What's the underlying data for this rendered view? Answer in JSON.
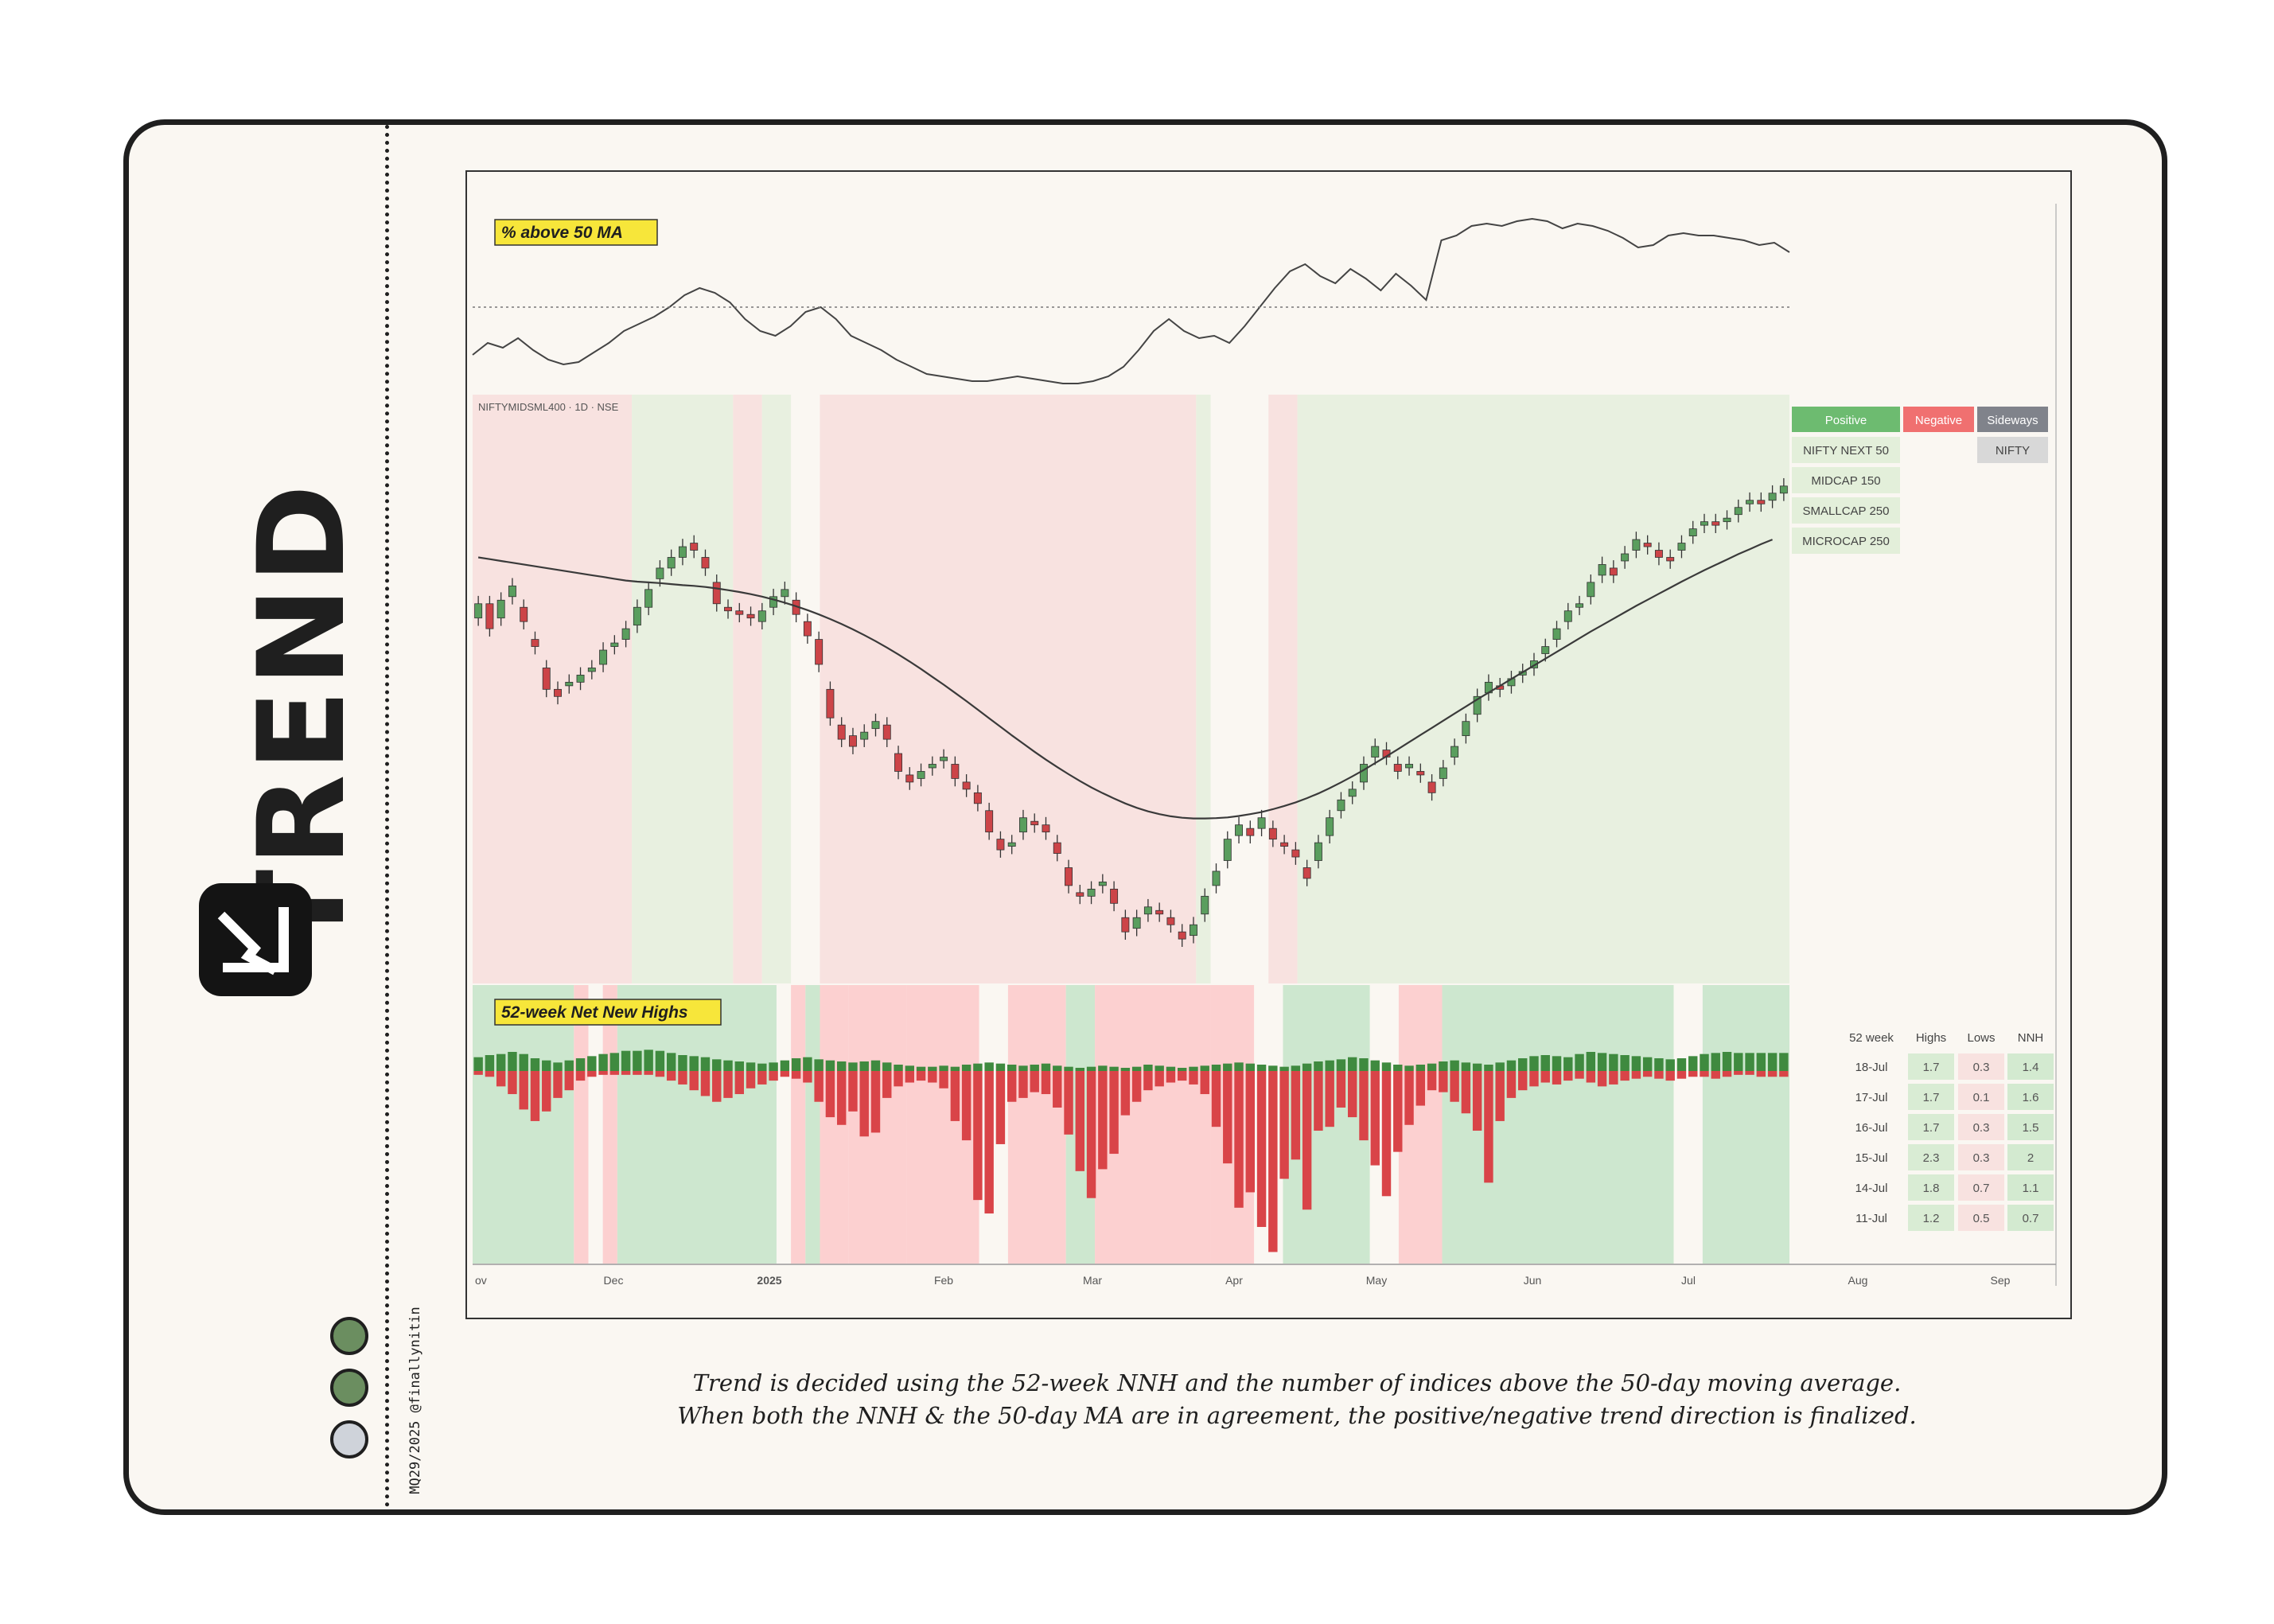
{
  "side": {
    "title": "TREND",
    "credit": "MQ29/2025 @finallynitin",
    "dot_colors": [
      "#6b8e60",
      "#6b8e60",
      "#cfd3da"
    ]
  },
  "caption": {
    "line1": "Trend is decided using the 52-week NNH and the number of indices above the 50-day moving average.",
    "line2": "When both the NNH & the 50-day MA are in agreement, the positive/negative trend direction is finalized."
  },
  "colors": {
    "bull": "#5a9e5e",
    "bear": "#cc4448",
    "bg_positive": "#e8f0e0",
    "bg_negative": "#f8e2e0",
    "nnh_positive": "#cde7cf",
    "nnh_negative": "#fcd0d0",
    "label_yellow": "#f7e63a"
  },
  "chart_data": [
    {
      "name": "pct-above-50ma",
      "type": "line",
      "title": "% above 50 MA",
      "reference_line": "dotted",
      "values": [
        40,
        45,
        43,
        47,
        42,
        38,
        36,
        37,
        41,
        45,
        50,
        53,
        56,
        60,
        65,
        68,
        66,
        62,
        55,
        50,
        48,
        52,
        58,
        60,
        55,
        48,
        45,
        42,
        38,
        35,
        32,
        31,
        30,
        29,
        29,
        30,
        31,
        30,
        29,
        28,
        28,
        29,
        31,
        35,
        42,
        50,
        55,
        50,
        47,
        48,
        45,
        52,
        60,
        68,
        75,
        78,
        73,
        70,
        76,
        72,
        67,
        74,
        69,
        63,
        88,
        90,
        94,
        95,
        94,
        96,
        97,
        96,
        93,
        95,
        94,
        92,
        89,
        85,
        86,
        90,
        91,
        90,
        90,
        89,
        88,
        86,
        87,
        83
      ],
      "ylim": [
        20,
        110
      ]
    },
    {
      "name": "price",
      "type": "candlestick",
      "symbol_label": "NIFTYMIDSML400 · 1D · NSE",
      "closes": [
        62,
        55,
        63,
        67,
        57,
        50,
        38,
        36,
        40,
        42,
        44,
        49,
        51,
        55,
        61,
        66,
        72,
        75,
        78,
        77,
        72,
        62,
        60,
        59,
        58,
        60,
        64,
        66,
        59,
        53,
        45,
        30,
        24,
        22,
        26,
        29,
        24,
        15,
        12,
        15,
        17,
        19,
        13,
        10,
        6,
        -2,
        -7,
        -5,
        2,
        0,
        -2,
        -8,
        -17,
        -20,
        -18,
        -16,
        -22,
        -30,
        -26,
        -23,
        -25,
        -28,
        -32,
        -28,
        -20,
        -13,
        -4,
        0,
        -3,
        2,
        -4,
        -6,
        -9,
        -15,
        -5,
        2,
        7,
        10,
        17,
        22,
        19,
        15,
        17,
        14,
        9,
        16,
        22,
        29,
        36,
        40,
        38,
        41,
        43,
        46,
        50,
        55,
        60,
        62,
        68,
        73,
        70,
        76,
        80,
        78,
        75,
        74,
        79,
        83,
        85,
        84,
        86,
        89,
        91,
        90,
        93,
        95
      ],
      "opens": [
        58,
        62,
        58,
        64,
        61,
        52,
        44,
        38,
        39,
        40,
        43,
        45,
        50,
        52,
        56,
        61,
        69,
        72,
        75,
        79,
        75,
        68,
        61,
        60,
        59,
        57,
        61,
        64,
        63,
        57,
        52,
        38,
        28,
        25,
        24,
        27,
        28,
        20,
        14,
        13,
        16,
        18,
        17,
        12,
        9,
        4,
        -4,
        -6,
        -2,
        1,
        0,
        -5,
        -12,
        -19,
        -20,
        -17,
        -18,
        -26,
        -29,
        -25,
        -24,
        -26,
        -30,
        -31,
        -25,
        -17,
        -10,
        -3,
        -1,
        -1,
        -1,
        -5,
        -7,
        -12,
        -10,
        -3,
        4,
        8,
        12,
        19,
        21,
        17,
        16,
        15,
        12,
        13,
        19,
        25,
        31,
        37,
        39,
        39,
        42,
        44,
        48,
        52,
        57,
        61,
        64,
        70,
        72,
        74,
        77,
        79,
        77,
        75,
        77,
        81,
        84,
        85,
        85,
        87,
        90,
        91,
        91,
        93
      ],
      "ma50": [
        75,
        74.5,
        74,
        73.5,
        73,
        72.5,
        72,
        71.5,
        71,
        70.5,
        70,
        69.5,
        69,
        68.5,
        68.2,
        68,
        67.8,
        67.5,
        67.2,
        67,
        66.7,
        66.3,
        65.8,
        65.3,
        64.7,
        64,
        63.2,
        62.3,
        61.3,
        60.2,
        59,
        57.7,
        56.3,
        54.8,
        53.2,
        51.5,
        49.7,
        47.8,
        45.8,
        43.7,
        41.5,
        39.3,
        37,
        34.7,
        32.3,
        29.9,
        27.5,
        25.1,
        22.8,
        20.5,
        18.3,
        16.2,
        14.2,
        12.3,
        10.5,
        8.9,
        7.4,
        6,
        4.8,
        3.8,
        3,
        2.4,
        2,
        1.8,
        1.8,
        1.9,
        2.1,
        2.5,
        3,
        3.6,
        4.4,
        5.3,
        6.3,
        7.5,
        8.8,
        10.3,
        11.9,
        13.6,
        15.4,
        17.3,
        19.2,
        21.2,
        23.2,
        25.2,
        27.2,
        29.2,
        31.2,
        33.2,
        35.2,
        37.1,
        39,
        40.9,
        42.8,
        44.7,
        46.6,
        48.5,
        50.4,
        52.3,
        54.2,
        56,
        57.8,
        59.6,
        61.4,
        63.1,
        64.8,
        66.5,
        68.2,
        69.8,
        71.4,
        72.9,
        74.4,
        75.9,
        77.3,
        78.7,
        80
      ],
      "ylim": [
        -40,
        105
      ],
      "regions": [
        {
          "start": 0,
          "end": 10,
          "state": "negative"
        },
        {
          "start": 11,
          "end": 17,
          "state": "positive"
        },
        {
          "start": 18,
          "end": 19,
          "state": "negative"
        },
        {
          "start": 20,
          "end": 21,
          "state": "positive"
        },
        {
          "start": 22,
          "end": 23,
          "state": "neutral"
        },
        {
          "start": 24,
          "end": 49,
          "state": "negative"
        },
        {
          "start": 50,
          "end": 50,
          "state": "positive"
        },
        {
          "start": 52,
          "end": 54,
          "state": "neutral"
        },
        {
          "start": 55,
          "end": 56,
          "state": "negative"
        },
        {
          "start": 57,
          "end": 90,
          "state": "positive"
        }
      ]
    },
    {
      "name": "nnh",
      "type": "bar",
      "title": "52-week Net New Highs",
      "highs": [
        1.3,
        1.5,
        1.6,
        1.8,
        1.6,
        1.2,
        1.0,
        0.8,
        1.0,
        1.2,
        1.4,
        1.6,
        1.7,
        1.9,
        1.9,
        2.0,
        1.9,
        1.7,
        1.5,
        1.4,
        1.3,
        1.1,
        1.0,
        0.9,
        0.8,
        0.7,
        0.8,
        1.0,
        1.2,
        1.3,
        1.1,
        1.0,
        0.9,
        0.8,
        0.9,
        1.0,
        0.8,
        0.6,
        0.5,
        0.4,
        0.4,
        0.5,
        0.4,
        0.6,
        0.7,
        0.8,
        0.7,
        0.6,
        0.5,
        0.6,
        0.7,
        0.5,
        0.4,
        0.3,
        0.4,
        0.5,
        0.4,
        0.3,
        0.4,
        0.6,
        0.5,
        0.4,
        0.3,
        0.4,
        0.5,
        0.6,
        0.7,
        0.8,
        0.7,
        0.6,
        0.5,
        0.4,
        0.5,
        0.7,
        0.9,
        1.0,
        1.1,
        1.3,
        1.2,
        1.0,
        0.8,
        0.6,
        0.5,
        0.6,
        0.7,
        0.9,
        1.0,
        0.8,
        0.7,
        0.6,
        0.8,
        1.0,
        1.2,
        1.4,
        1.5,
        1.4,
        1.3,
        1.6,
        1.8,
        1.7,
        1.6,
        1.5,
        1.4,
        1.3,
        1.2,
        1.1,
        1.2,
        1.4,
        1.6,
        1.7,
        1.8,
        1.7,
        1.7,
        1.7,
        1.7,
        1.7
      ],
      "lows": [
        0.2,
        0.3,
        0.8,
        1.2,
        2.0,
        2.6,
        2.1,
        1.4,
        1.0,
        0.5,
        0.3,
        0.2,
        0.2,
        0.2,
        0.2,
        0.2,
        0.3,
        0.5,
        0.7,
        1.0,
        1.3,
        1.6,
        1.4,
        1.2,
        0.9,
        0.7,
        0.5,
        0.3,
        0.4,
        0.6,
        1.6,
        2.4,
        2.8,
        2.1,
        3.4,
        3.2,
        1.4,
        0.8,
        0.6,
        0.5,
        0.6,
        0.9,
        2.6,
        3.6,
        6.7,
        7.4,
        3.8,
        1.6,
        1.4,
        1.1,
        1.2,
        1.9,
        3.3,
        5.2,
        6.6,
        5.1,
        4.3,
        2.3,
        1.6,
        1.0,
        0.8,
        0.6,
        0.5,
        0.7,
        1.2,
        2.9,
        4.8,
        7.1,
        6.3,
        8.1,
        9.4,
        5.6,
        4.6,
        7.2,
        3.1,
        2.9,
        1.9,
        2.4,
        3.6,
        4.9,
        6.5,
        4.2,
        2.8,
        1.8,
        1.0,
        1.1,
        1.6,
        2.2,
        3.1,
        5.8,
        2.6,
        1.4,
        1.0,
        0.8,
        0.6,
        0.7,
        0.5,
        0.4,
        0.6,
        0.8,
        0.7,
        0.5,
        0.4,
        0.3,
        0.4,
        0.5,
        0.4,
        0.3,
        0.3,
        0.4,
        0.3,
        0.2,
        0.2,
        0.3,
        0.3,
        0.3
      ],
      "ylim_low": -10,
      "ylim_high": 3,
      "regions": [
        {
          "start": 0,
          "end": 6,
          "state": "positive"
        },
        {
          "start": 7,
          "end": 7,
          "state": "negative"
        },
        {
          "start": 9,
          "end": 9,
          "state": "negative"
        },
        {
          "start": 10,
          "end": 20,
          "state": "positive"
        },
        {
          "start": 21,
          "end": 21,
          "state": "neutral"
        },
        {
          "start": 22,
          "end": 22,
          "state": "negative"
        },
        {
          "start": 23,
          "end": 23,
          "state": "positive"
        },
        {
          "start": 24,
          "end": 25,
          "state": "negative"
        },
        {
          "start": 26,
          "end": 29,
          "state": "negative"
        },
        {
          "start": 30,
          "end": 34,
          "state": "negative"
        },
        {
          "start": 35,
          "end": 36,
          "state": "neutral"
        },
        {
          "start": 37,
          "end": 40,
          "state": "negative"
        },
        {
          "start": 41,
          "end": 42,
          "state": "positive"
        },
        {
          "start": 43,
          "end": 50,
          "state": "negative"
        },
        {
          "start": 51,
          "end": 53,
          "state": "negative"
        },
        {
          "start": 54,
          "end": 55,
          "state": "neutral"
        },
        {
          "start": 56,
          "end": 61,
          "state": "positive"
        },
        {
          "start": 62,
          "end": 63,
          "state": "neutral"
        },
        {
          "start": 64,
          "end": 66,
          "state": "negative"
        },
        {
          "start": 67,
          "end": 82,
          "state": "positive"
        },
        {
          "start": 83,
          "end": 84,
          "state": "neutral"
        },
        {
          "start": 85,
          "end": 90,
          "state": "positive"
        }
      ]
    }
  ],
  "x_axis": {
    "labels": [
      "ov",
      "Dec",
      "2025",
      "Feb",
      "Mar",
      "Apr",
      "May",
      "Jun",
      "Jul",
      "Aug",
      "Sep"
    ],
    "bold_index": 2
  },
  "legend": {
    "headers": [
      "Positive",
      "Negative",
      "Sideways"
    ],
    "header_colors": [
      "#6dbb70",
      "#f07070",
      "#80838b"
    ],
    "positive": [
      "NIFTY NEXT 50",
      "MIDCAP 150",
      "SMALLCAP 250",
      "MICROCAP 250"
    ],
    "negative": [],
    "sideways": [
      "NIFTY"
    ]
  },
  "nnh_table": {
    "headers": [
      "52 week",
      "Highs",
      "Lows",
      "NNH"
    ],
    "rows": [
      {
        "date": "18-Jul",
        "highs": "1.7",
        "lows": "0.3",
        "nnh": "1.4"
      },
      {
        "date": "17-Jul",
        "highs": "1.7",
        "lows": "0.1",
        "nnh": "1.6"
      },
      {
        "date": "16-Jul",
        "highs": "1.7",
        "lows": "0.3",
        "nnh": "1.5"
      },
      {
        "date": "15-Jul",
        "highs": "2.3",
        "lows": "0.3",
        "nnh": "2"
      },
      {
        "date": "14-Jul",
        "highs": "1.8",
        "lows": "0.7",
        "nnh": "1.1"
      },
      {
        "date": "11-Jul",
        "highs": "1.2",
        "lows": "0.5",
        "nnh": "0.7"
      }
    ]
  }
}
